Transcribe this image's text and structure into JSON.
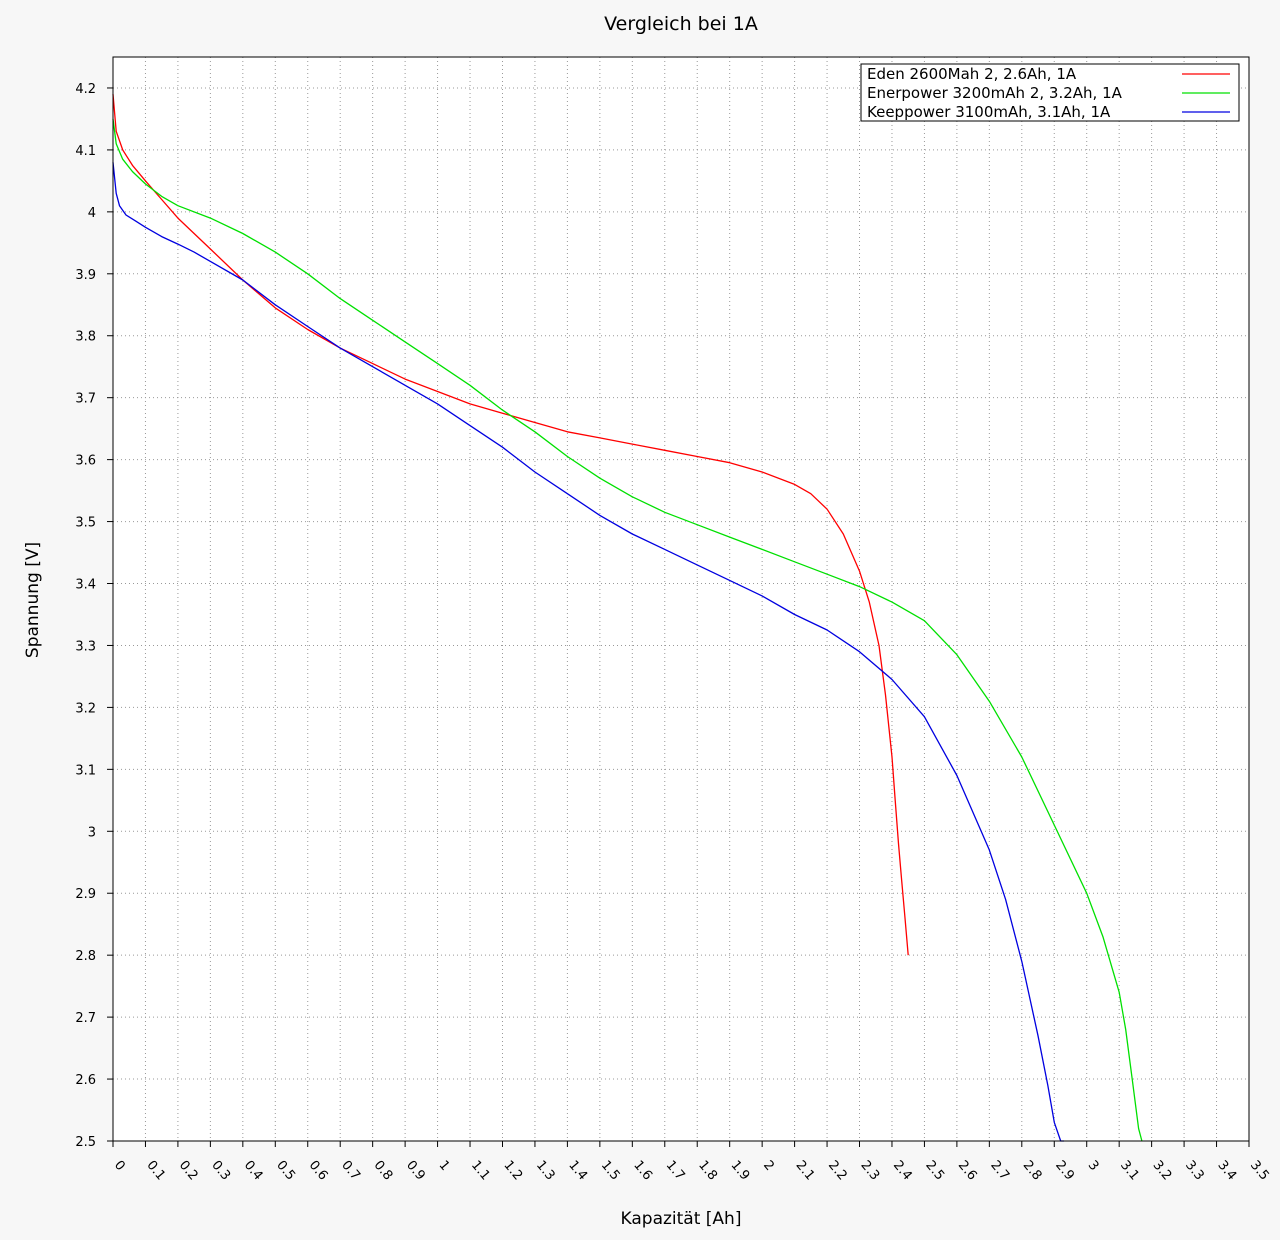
{
  "chart_data": {
    "type": "line",
    "title": "Vergleich bei 1A",
    "xlabel": "Kapazität [Ah]",
    "ylabel": "Spannung [V]",
    "xlim": [
      0,
      3.5
    ],
    "ylim": [
      2.5,
      4.25
    ],
    "x_ticks": [
      "0",
      "0.1",
      "0.2",
      "0.3",
      "0.4",
      "0.5",
      "0.6",
      "0.7",
      "0.8",
      "0.9",
      "1",
      "1.1",
      "1.2",
      "1.3",
      "1.4",
      "1.5",
      "1.6",
      "1.7",
      "1.8",
      "1.9",
      "2",
      "2.1",
      "2.2",
      "2.3",
      "2.4",
      "2.5",
      "2.6",
      "2.7",
      "2.8",
      "2.9",
      "3",
      "3.1",
      "3.2",
      "3.3",
      "3.4",
      "3.5"
    ],
    "y_ticks": [
      "2.5",
      "2.6",
      "2.7",
      "2.8",
      "2.9",
      "3",
      "3.1",
      "3.2",
      "3.3",
      "3.4",
      "3.5",
      "3.6",
      "3.7",
      "3.8",
      "3.9",
      "4",
      "4.1",
      "4.2"
    ],
    "grid": true,
    "legend_position": "top-right",
    "series": [
      {
        "name": "Eden 2600Mah 2, 2.6Ah, 1A",
        "color": "#ff0000",
        "x": [
          0,
          0.01,
          0.03,
          0.06,
          0.1,
          0.15,
          0.2,
          0.3,
          0.4,
          0.5,
          0.6,
          0.7,
          0.8,
          0.9,
          1.0,
          1.1,
          1.2,
          1.3,
          1.4,
          1.5,
          1.6,
          1.7,
          1.8,
          1.9,
          2.0,
          2.1,
          2.15,
          2.2,
          2.25,
          2.3,
          2.33,
          2.36,
          2.38,
          2.4,
          2.41,
          2.42,
          2.43,
          2.44,
          2.45
        ],
        "y": [
          4.19,
          4.13,
          4.1,
          4.075,
          4.05,
          4.02,
          3.99,
          3.94,
          3.89,
          3.845,
          3.81,
          3.78,
          3.755,
          3.73,
          3.71,
          3.69,
          3.675,
          3.66,
          3.645,
          3.635,
          3.625,
          3.615,
          3.605,
          3.595,
          3.58,
          3.56,
          3.545,
          3.52,
          3.48,
          3.42,
          3.37,
          3.3,
          3.22,
          3.12,
          3.05,
          2.98,
          2.92,
          2.86,
          2.8
        ]
      },
      {
        "name": "Enerpower 3200mAh 2, 3.2Ah, 1A",
        "color": "#00e000",
        "x": [
          0,
          0.01,
          0.03,
          0.06,
          0.1,
          0.15,
          0.2,
          0.3,
          0.4,
          0.5,
          0.6,
          0.7,
          0.8,
          0.9,
          1.0,
          1.1,
          1.2,
          1.3,
          1.4,
          1.5,
          1.6,
          1.7,
          1.8,
          1.9,
          2.0,
          2.1,
          2.2,
          2.3,
          2.4,
          2.5,
          2.6,
          2.7,
          2.8,
          2.9,
          3.0,
          3.05,
          3.1,
          3.12,
          3.14,
          3.16,
          3.17
        ],
        "y": [
          4.15,
          4.11,
          4.085,
          4.065,
          4.045,
          4.025,
          4.01,
          3.99,
          3.965,
          3.935,
          3.9,
          3.86,
          3.825,
          3.79,
          3.755,
          3.72,
          3.68,
          3.645,
          3.605,
          3.57,
          3.54,
          3.515,
          3.495,
          3.475,
          3.455,
          3.435,
          3.415,
          3.395,
          3.37,
          3.34,
          3.285,
          3.21,
          3.12,
          3.01,
          2.9,
          2.83,
          2.74,
          2.68,
          2.6,
          2.52,
          2.48
        ]
      },
      {
        "name": "Keeppower 3100mAh, 3.1Ah, 1A",
        "color": "#0000e0",
        "x": [
          0,
          0.01,
          0.02,
          0.04,
          0.07,
          0.1,
          0.15,
          0.2,
          0.25,
          0.3,
          0.4,
          0.5,
          0.6,
          0.7,
          0.8,
          0.9,
          1.0,
          1.1,
          1.2,
          1.3,
          1.4,
          1.5,
          1.6,
          1.7,
          1.8,
          1.9,
          2.0,
          2.1,
          2.2,
          2.3,
          2.4,
          2.5,
          2.6,
          2.7,
          2.75,
          2.8,
          2.85,
          2.88,
          2.9,
          2.92,
          2.93
        ],
        "y": [
          4.08,
          4.03,
          4.01,
          3.995,
          3.985,
          3.975,
          3.96,
          3.948,
          3.935,
          3.92,
          3.89,
          3.85,
          3.815,
          3.78,
          3.75,
          3.72,
          3.69,
          3.655,
          3.62,
          3.58,
          3.545,
          3.51,
          3.48,
          3.455,
          3.43,
          3.405,
          3.38,
          3.35,
          3.325,
          3.29,
          3.245,
          3.185,
          3.09,
          2.97,
          2.89,
          2.79,
          2.67,
          2.59,
          2.53,
          2.48,
          2.45
        ]
      }
    ]
  }
}
